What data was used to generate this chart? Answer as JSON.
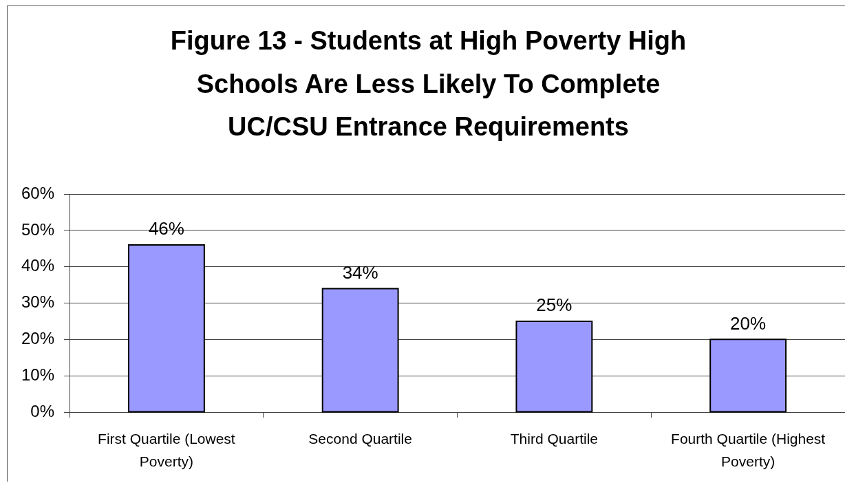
{
  "chart_data": {
    "type": "bar",
    "title": "Figure 13 - Students at High Poverty High Schools Are Less Likely To Complete UC/CSU Entrance Requirements",
    "categories": [
      "First Quartile (Lowest Poverty)",
      "Second Quartile",
      "Third Quartile",
      "Fourth Quartile (Highest Poverty)"
    ],
    "values": [
      46,
      34,
      25,
      20
    ],
    "value_labels": [
      "46%",
      "34%",
      "25%",
      "20%"
    ],
    "color": "#9999ff",
    "ylim": [
      0,
      60
    ],
    "yticks": [
      {
        "value": 0,
        "label": "0%"
      },
      {
        "value": 10,
        "label": "10%"
      },
      {
        "value": 20,
        "label": "20%"
      },
      {
        "value": 30,
        "label": "30%"
      },
      {
        "value": 40,
        "label": "40%"
      },
      {
        "value": 50,
        "label": "50%"
      },
      {
        "value": 60,
        "label": "60%"
      }
    ],
    "grid": "y"
  }
}
